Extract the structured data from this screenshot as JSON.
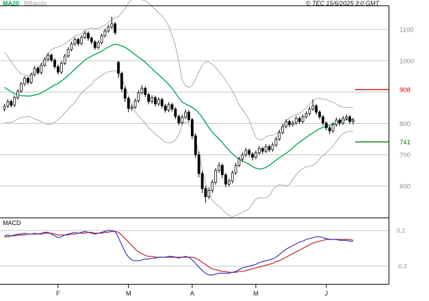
{
  "header": {
    "legend_ma": "MA20",
    "legend_bbands": "BBands",
    "copyright": "© TEC 15/6/2025 3:0 GMT"
  },
  "chart_data": {
    "type": "candlestick",
    "description": "Daily candlestick price chart with MA20 and Bollinger Bands overlays, horizontal resistance (908) and support (741) levels, and a MACD sub-panel. X axis spans February (F) to June (J).",
    "price_panel": {
      "ylim": [
        540,
        1160
      ],
      "gridlines": [
        1100,
        1000,
        900,
        800,
        700,
        600
      ],
      "axis_ticks": [
        {
          "label": "1100",
          "value": 1100
        },
        {
          "label": "1000",
          "value": 1000
        },
        {
          "label": "800",
          "value": 800
        },
        {
          "label": "700",
          "value": 700
        },
        {
          "label": "600",
          "value": 600
        }
      ],
      "levels": [
        {
          "label": "908",
          "value": 908,
          "color": "#cc0000",
          "role": "resistance"
        },
        {
          "label": "741",
          "value": 741,
          "color": "#007700",
          "role": "support"
        }
      ],
      "overlays": [
        "MA20",
        "Bollinger Bands (20,2)"
      ],
      "ma_period": 20,
      "bollinger": {
        "period": 20,
        "stddev": 2
      },
      "pre_closes": [
        1012,
        1005,
        996,
        984,
        972,
        958,
        948,
        938,
        924,
        914,
        902,
        890,
        878,
        868,
        862,
        856,
        850,
        844,
        848
      ],
      "candles_ohlc": [
        [
          846,
          862,
          838,
          855
        ],
        [
          855,
          877,
          849,
          870
        ],
        [
          870,
          876,
          851,
          858
        ],
        [
          858,
          889,
          852,
          882
        ],
        [
          882,
          910,
          876,
          903
        ],
        [
          903,
          932,
          897,
          926
        ],
        [
          926,
          951,
          919,
          944
        ],
        [
          944,
          950,
          924,
          931
        ],
        [
          931,
          962,
          925,
          956
        ],
        [
          956,
          983,
          950,
          976
        ],
        [
          976,
          982,
          955,
          962
        ],
        [
          962,
          993,
          956,
          986
        ],
        [
          986,
          1011,
          980,
          1004
        ],
        [
          1004,
          1025,
          998,
          1018
        ],
        [
          1018,
          1024,
          995,
          1002
        ],
        [
          1002,
          1008,
          974,
          981
        ],
        [
          981,
          988,
          956,
          964
        ],
        [
          964,
          999,
          958,
          992
        ],
        [
          992,
          1022,
          986,
          1015
        ],
        [
          1015,
          1043,
          1009,
          1036
        ],
        [
          1036,
          1061,
          1030,
          1054
        ],
        [
          1054,
          1075,
          1048,
          1068
        ],
        [
          1068,
          1074,
          1047,
          1055
        ],
        [
          1055,
          1082,
          1049,
          1075
        ],
        [
          1075,
          1095,
          1069,
          1088
        ],
        [
          1088,
          1094,
          1064,
          1072
        ],
        [
          1072,
          1078,
          1052,
          1060
        ],
        [
          1060,
          1066,
          1034,
          1042
        ],
        [
          1042,
          1065,
          1036,
          1058
        ],
        [
          1058,
          1087,
          1052,
          1080
        ],
        [
          1080,
          1102,
          1074,
          1095
        ],
        [
          1095,
          1115,
          1089,
          1108
        ],
        [
          1108,
          1140,
          1102,
          1118
        ],
        [
          1118,
          1124,
          1082,
          1090
        ],
        [
          995,
          1000,
          945,
          960
        ],
        [
          960,
          966,
          900,
          910
        ],
        [
          910,
          918,
          868,
          880
        ],
        [
          880,
          886,
          836,
          848
        ],
        [
          848,
          860,
          840,
          852
        ],
        [
          852,
          880,
          846,
          872
        ],
        [
          872,
          906,
          866,
          898
        ],
        [
          898,
          922,
          892,
          912
        ],
        [
          912,
          918,
          884,
          892
        ],
        [
          892,
          898,
          861,
          870
        ],
        [
          870,
          890,
          863,
          882
        ],
        [
          882,
          888,
          854,
          862
        ],
        [
          862,
          884,
          856,
          876
        ],
        [
          876,
          882,
          848,
          856
        ],
        [
          856,
          863,
          834,
          842
        ],
        [
          842,
          868,
          836,
          860
        ],
        [
          860,
          866,
          838,
          846
        ],
        [
          846,
          852,
          814,
          822
        ],
        [
          822,
          828,
          794,
          802
        ],
        [
          802,
          828,
          796,
          820
        ],
        [
          820,
          844,
          814,
          836
        ],
        [
          836,
          842,
          804,
          812
        ],
        [
          812,
          818,
          750,
          760
        ],
        [
          760,
          768,
          690,
          700
        ],
        [
          700,
          710,
          628,
          640
        ],
        [
          640,
          648,
          578,
          592
        ],
        [
          592,
          600,
          546,
          566
        ],
        [
          566,
          596,
          558,
          586
        ],
        [
          586,
          620,
          578,
          612
        ],
        [
          612,
          658,
          604,
          650
        ],
        [
          650,
          676,
          642,
          666
        ],
        [
          666,
          672,
          626,
          636
        ],
        [
          636,
          642,
          596,
          606
        ],
        [
          606,
          624,
          598,
          616
        ],
        [
          616,
          650,
          608,
          642
        ],
        [
          642,
          674,
          636,
          666
        ],
        [
          666,
          694,
          660,
          686
        ],
        [
          686,
          708,
          678,
          700
        ],
        [
          700,
          722,
          692,
          714
        ],
        [
          714,
          720,
          694,
          702
        ],
        [
          702,
          708,
          682,
          692
        ],
        [
          692,
          714,
          686,
          706
        ],
        [
          706,
          728,
          700,
          720
        ],
        [
          720,
          726,
          702,
          711
        ],
        [
          711,
          734,
          705,
          726
        ],
        [
          726,
          732,
          708,
          716
        ],
        [
          716,
          739,
          710,
          731
        ],
        [
          731,
          758,
          725,
          750
        ],
        [
          750,
          779,
          744,
          771
        ],
        [
          771,
          798,
          765,
          790
        ],
        [
          790,
          814,
          784,
          806
        ],
        [
          806,
          812,
          788,
          796
        ],
        [
          796,
          809,
          790,
          801
        ],
        [
          801,
          824,
          795,
          816
        ],
        [
          816,
          822,
          798,
          806
        ],
        [
          806,
          829,
          800,
          821
        ],
        [
          821,
          839,
          815,
          831
        ],
        [
          831,
          854,
          825,
          846
        ],
        [
          846,
          876,
          840,
          856
        ],
        [
          856,
          862,
          828,
          836
        ],
        [
          836,
          842,
          813,
          821
        ],
        [
          821,
          827,
          793,
          801
        ],
        [
          801,
          807,
          778,
          786
        ],
        [
          786,
          792,
          766,
          776
        ],
        [
          776,
          804,
          770,
          796
        ],
        [
          796,
          819,
          790,
          811
        ],
        [
          811,
          817,
          793,
          801
        ],
        [
          801,
          824,
          795,
          816
        ],
        [
          816,
          829,
          810,
          821
        ],
        [
          821,
          827,
          798,
          806
        ],
        [
          806,
          818,
          796,
          811
        ]
      ]
    },
    "macd_panel": {
      "label": "MACD",
      "ylim": [
        -0.35,
        0.25
      ],
      "axis_ticks": [
        {
          "label": "0,2",
          "value": 0.2
        },
        {
          "label": "-0,2",
          "value": -0.2
        }
      ],
      "line": [
        0.14,
        0.15,
        0.14,
        0.15,
        0.16,
        0.16,
        0.17,
        0.16,
        0.16,
        0.17,
        0.16,
        0.17,
        0.18,
        0.18,
        0.16,
        0.14,
        0.12,
        0.13,
        0.15,
        0.16,
        0.17,
        0.18,
        0.17,
        0.18,
        0.19,
        0.18,
        0.17,
        0.16,
        0.17,
        0.18,
        0.19,
        0.2,
        0.2,
        0.19,
        0.12,
        0.04,
        -0.04,
        -0.1,
        -0.13,
        -0.14,
        -0.14,
        -0.13,
        -0.12,
        -0.12,
        -0.11,
        -0.11,
        -0.1,
        -0.1,
        -0.1,
        -0.09,
        -0.09,
        -0.1,
        -0.11,
        -0.1,
        -0.09,
        -0.1,
        -0.13,
        -0.17,
        -0.21,
        -0.25,
        -0.28,
        -0.3,
        -0.3,
        -0.29,
        -0.28,
        -0.28,
        -0.28,
        -0.28,
        -0.27,
        -0.26,
        -0.24,
        -0.22,
        -0.21,
        -0.2,
        -0.19,
        -0.18,
        -0.16,
        -0.15,
        -0.14,
        -0.13,
        -0.12,
        -0.1,
        -0.07,
        -0.04,
        -0.01,
        0.01,
        0.03,
        0.05,
        0.07,
        0.08,
        0.1,
        0.11,
        0.12,
        0.13,
        0.13,
        0.12,
        0.11,
        0.1,
        0.1,
        0.1,
        0.09,
        0.09,
        0.09,
        0.08,
        0.08
      ],
      "signal": [
        0.13,
        0.13,
        0.14,
        0.14,
        0.15,
        0.15,
        0.15,
        0.16,
        0.16,
        0.16,
        0.16,
        0.16,
        0.17,
        0.17,
        0.17,
        0.16,
        0.15,
        0.15,
        0.15,
        0.15,
        0.16,
        0.16,
        0.17,
        0.17,
        0.17,
        0.18,
        0.18,
        0.17,
        0.17,
        0.17,
        0.18,
        0.18,
        0.19,
        0.19,
        0.18,
        0.15,
        0.11,
        0.07,
        0.03,
        -0.01,
        -0.04,
        -0.06,
        -0.08,
        -0.09,
        -0.09,
        -0.1,
        -0.1,
        -0.1,
        -0.1,
        -0.1,
        -0.1,
        -0.1,
        -0.1,
        -0.1,
        -0.1,
        -0.1,
        -0.1,
        -0.11,
        -0.13,
        -0.16,
        -0.18,
        -0.21,
        -0.23,
        -0.24,
        -0.25,
        -0.26,
        -0.26,
        -0.27,
        -0.27,
        -0.27,
        -0.26,
        -0.26,
        -0.25,
        -0.24,
        -0.23,
        -0.22,
        -0.21,
        -0.2,
        -0.19,
        -0.18,
        -0.17,
        -0.15,
        -0.14,
        -0.12,
        -0.1,
        -0.08,
        -0.06,
        -0.04,
        -0.02,
        0.0,
        0.02,
        0.04,
        0.06,
        0.07,
        0.08,
        0.09,
        0.1,
        0.1,
        0.1,
        0.1,
        0.1,
        0.1,
        0.1,
        0.1,
        0.09
      ]
    },
    "x_axis": {
      "months": [
        {
          "label": "F",
          "index": 16
        },
        {
          "label": "M",
          "index": 37
        },
        {
          "label": "A",
          "index": 56
        },
        {
          "label": "M",
          "index": 75
        },
        {
          "label": "J",
          "index": 96
        }
      ]
    },
    "colors": {
      "ma": "#00a651",
      "bands": "#a8a8a8",
      "candle": "#000000",
      "grid": "#c4c4c4",
      "axis_text": "#8a8a8a",
      "macd_line": "#3333bb",
      "macd_signal": "#bb2222",
      "level_resistance": "#cc0000",
      "level_support": "#007700"
    }
  }
}
